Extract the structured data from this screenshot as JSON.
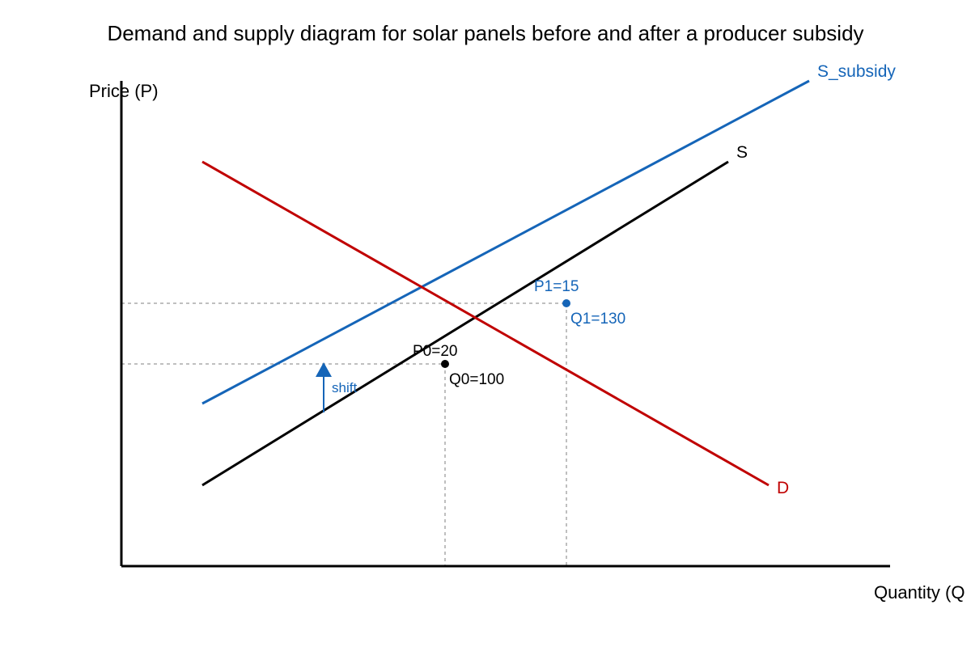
{
  "title": "Demand and supply diagram for solar panels before and after a producer subsidy",
  "axes": {
    "y_label": "Price (P)",
    "x_label": "Quantity (Q"
  },
  "curves": {
    "supply_subsidy": "S_subsidy",
    "supply": "S",
    "demand": "D"
  },
  "points": [
    {
      "price": "P0=20",
      "quantity": "Q0=100"
    },
    {
      "price": "P1=15",
      "quantity": "Q1=130"
    }
  ],
  "shift_label": "shift"
}
